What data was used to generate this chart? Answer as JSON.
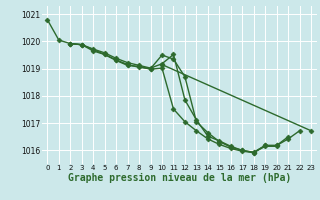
{
  "title": "Graphe pression niveau de la mer (hPa)",
  "background_color": "#cce8ea",
  "grid_color": "#ffffff",
  "line_color": "#2d6a2d",
  "xlim": [
    -0.5,
    23.5
  ],
  "ylim": [
    1015.5,
    1021.3
  ],
  "yticks": [
    1016,
    1017,
    1018,
    1019,
    1020,
    1021
  ],
  "xticks": [
    0,
    1,
    2,
    3,
    4,
    5,
    6,
    7,
    8,
    9,
    10,
    11,
    12,
    13,
    14,
    15,
    16,
    17,
    18,
    19,
    20,
    21,
    22,
    23
  ],
  "series": [
    {
      "x": [
        0,
        1,
        2,
        3,
        4,
        5,
        6,
        7,
        8,
        9,
        10,
        11,
        12,
        13,
        14,
        15,
        16,
        17,
        18,
        19,
        20,
        21
      ],
      "y": [
        1020.8,
        1020.05,
        1019.92,
        1019.88,
        1019.65,
        1019.52,
        1019.32,
        1019.15,
        1019.05,
        1019.0,
        1019.5,
        1019.35,
        1018.7,
        1017.05,
        1016.65,
        1016.32,
        1016.12,
        1016.0,
        1015.93,
        1016.18,
        1016.18,
        1016.5
      ]
    },
    {
      "x": [
        2,
        3,
        4,
        5,
        6,
        7,
        8,
        9,
        10,
        11,
        12,
        13,
        14,
        15,
        16,
        17,
        18,
        19,
        20
      ],
      "y": [
        1019.92,
        1019.88,
        1019.72,
        1019.58,
        1019.38,
        1019.22,
        1019.12,
        1019.02,
        1019.18,
        1019.52,
        1017.85,
        1017.12,
        1016.52,
        1016.35,
        1016.15,
        1016.0,
        1015.92,
        1016.15,
        1016.15
      ]
    },
    {
      "x": [
        2,
        3,
        4,
        5,
        6,
        7,
        8,
        9,
        10,
        11,
        12,
        13,
        14,
        15,
        16,
        17,
        18,
        19,
        20,
        21,
        22
      ],
      "y": [
        1019.92,
        1019.88,
        1019.7,
        1019.52,
        1019.3,
        1019.12,
        1019.08,
        1018.98,
        1019.02,
        1017.52,
        1017.05,
        1016.72,
        1016.42,
        1016.22,
        1016.07,
        1015.97,
        1015.92,
        1016.18,
        1016.18,
        1016.42,
        1016.72
      ]
    },
    {
      "x": [
        10,
        23
      ],
      "y": [
        1019.15,
        1016.72
      ]
    }
  ],
  "marker": "D",
  "markersize": 2.5,
  "linewidth": 1.0,
  "title_fontsize": 7,
  "tick_fontsize": 5.5
}
